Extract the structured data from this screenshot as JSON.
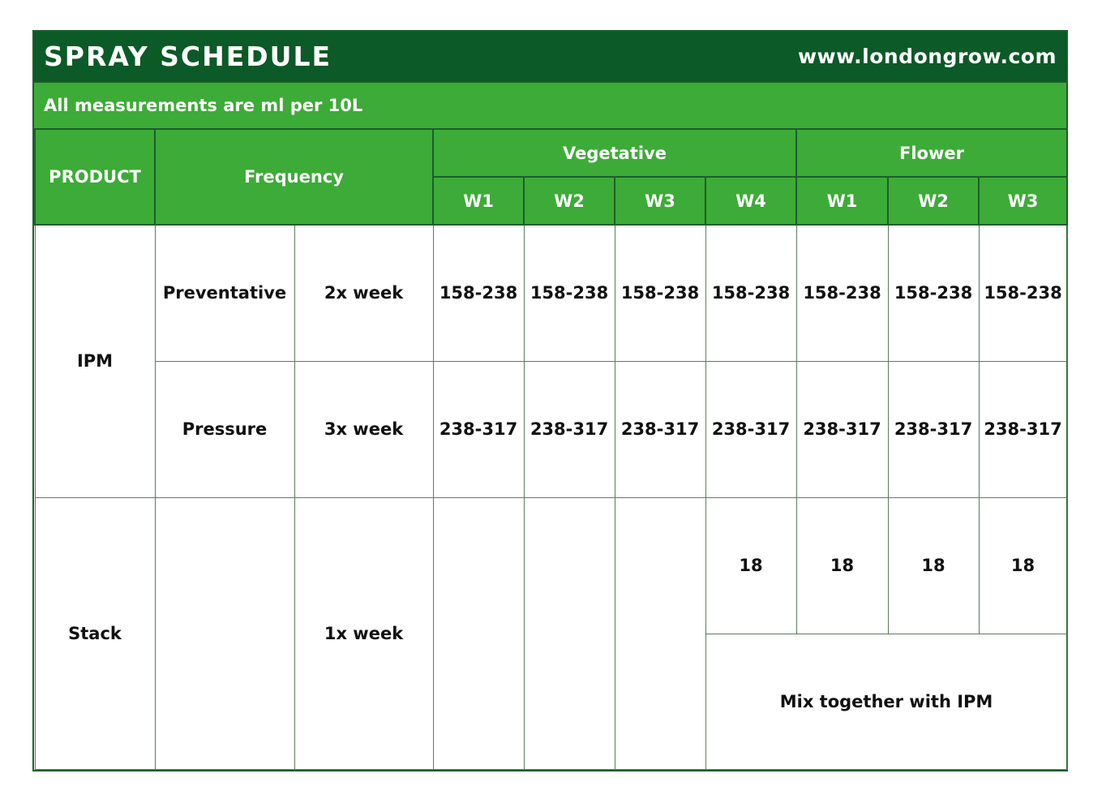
{
  "title": "SPRAY SCHEDULE",
  "website": "www.londongrow.com",
  "subtitle": "All measurements are ml per 10L",
  "headers": {
    "product": "PRODUCT",
    "frequency": "Frequency",
    "vegetative": "Vegetative",
    "flower": "Flower",
    "weeks": [
      "W1",
      "W2",
      "W3",
      "W4",
      "W1",
      "W2",
      "W3"
    ]
  },
  "rows": {
    "ipm": {
      "product": "IPM",
      "preventative": {
        "label": "Preventative",
        "frequency": "2x week",
        "values": [
          "158-238",
          "158-238",
          "158-238",
          "158-238",
          "158-238",
          "158-238",
          "158-238"
        ]
      },
      "pressure": {
        "label": "Pressure",
        "frequency": "3x week",
        "values": [
          "238-317",
          "238-317",
          "238-317",
          "238-317",
          "238-317",
          "238-317",
          "238-317"
        ]
      }
    },
    "stack": {
      "product": "Stack",
      "frequency": "1x week",
      "values": [
        "18",
        "18",
        "18",
        "18"
      ],
      "note": "Mix together with IPM"
    }
  },
  "colors": {
    "title_bg": "#0b5a27",
    "header_bg": "#3dab37"
  }
}
